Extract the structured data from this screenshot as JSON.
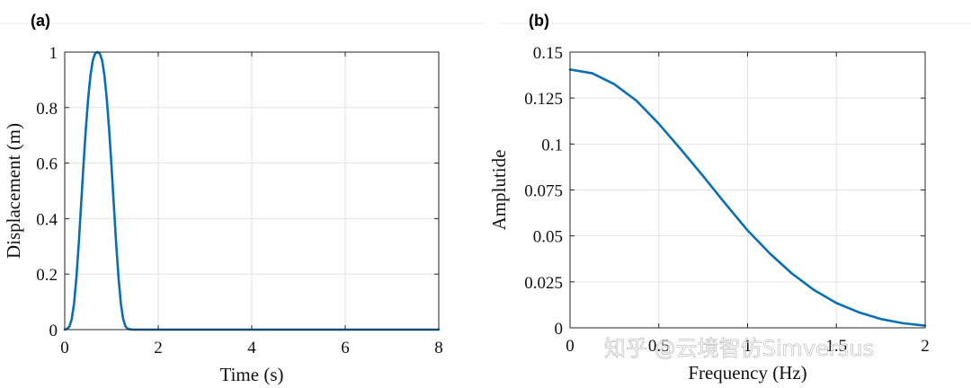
{
  "watermark": "知乎 @云境智仿Simversus",
  "chart_data": [
    {
      "panel_label": "(a)",
      "type": "line",
      "xlabel": "Time (s)",
      "ylabel": "Displacement (m)",
      "xlim": [
        0,
        8
      ],
      "ylim": [
        0,
        1
      ],
      "xticks": [
        0,
        2,
        4,
        6,
        8
      ],
      "yticks": [
        0,
        0.2,
        0.4,
        0.6,
        0.8,
        1
      ],
      "xtick_labels": [
        "0",
        "2",
        "4",
        "6",
        "8"
      ],
      "ytick_labels": [
        "0",
        "0.2",
        "0.4",
        "0.6",
        "0.8",
        "1"
      ],
      "grid": true,
      "color": "#0a6fb0",
      "series": [
        {
          "x": [
            0,
            0.05,
            0.1,
            0.15,
            0.2,
            0.25,
            0.3,
            0.35,
            0.4,
            0.45,
            0.5,
            0.55,
            0.6,
            0.65,
            0.7,
            0.75,
            0.8,
            0.85,
            0.9,
            0.95,
            1.0,
            1.05,
            1.1,
            1.15,
            1.2,
            1.25,
            1.3,
            1.35,
            1.4,
            1.45,
            1.5,
            2,
            3,
            4,
            5,
            6,
            7,
            8
          ],
          "y": [
            0,
            0.003,
            0.011,
            0.038,
            0.095,
            0.188,
            0.31,
            0.45,
            0.59,
            0.72,
            0.83,
            0.915,
            0.97,
            0.995,
            1.0,
            0.995,
            0.97,
            0.915,
            0.83,
            0.72,
            0.59,
            0.45,
            0.31,
            0.188,
            0.095,
            0.038,
            0.011,
            0.003,
            0.001,
            0,
            0,
            0,
            0,
            0,
            0,
            0,
            0,
            0
          ]
        }
      ]
    },
    {
      "panel_label": "(b)",
      "type": "line",
      "xlabel": "Frequency (Hz)",
      "ylabel": "Amplutide",
      "xlim": [
        0,
        2
      ],
      "ylim": [
        0,
        0.15
      ],
      "xticks": [
        0,
        0.5,
        1,
        1.5,
        2
      ],
      "yticks": [
        0,
        0.025,
        0.05,
        0.075,
        0.1,
        0.125,
        0.15
      ],
      "xtick_labels": [
        "0",
        "0.5",
        "1",
        "1.5",
        "2"
      ],
      "ytick_labels": [
        "0",
        "0.025",
        "0.05",
        "0.075",
        "0.1",
        "0.125",
        "0.15"
      ],
      "grid": true,
      "color": "#0a6fb0",
      "series": [
        {
          "x": [
            0,
            0.125,
            0.25,
            0.375,
            0.5,
            0.625,
            0.75,
            0.875,
            1.0,
            1.125,
            1.25,
            1.375,
            1.5,
            1.625,
            1.75,
            1.875,
            2.0
          ],
          "y": [
            0.1405,
            0.1385,
            0.1325,
            0.1235,
            0.111,
            0.097,
            0.0825,
            0.0675,
            0.053,
            0.0405,
            0.0295,
            0.0205,
            0.0135,
            0.0085,
            0.0048,
            0.0025,
            0.0012
          ]
        }
      ]
    }
  ]
}
